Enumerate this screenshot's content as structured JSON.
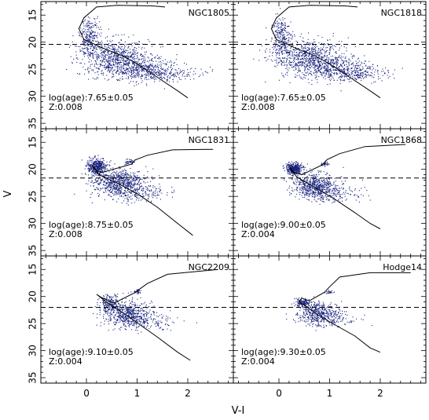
{
  "figure": {
    "xlabel": "V-I",
    "ylabel": "V"
  },
  "style": {
    "point_color": "#1a237e",
    "line_color": "#000000"
  },
  "chart_data": {
    "type": "scatter",
    "layout": "3x2 grid, shared axes",
    "xlabel": "V-I",
    "ylabel": "V",
    "xlim": [
      -0.9,
      2.9
    ],
    "ylim": [
      36,
      12.5
    ],
    "y_inverted": true,
    "x_ticks": [
      0,
      1,
      2
    ],
    "y_ticks": [
      15,
      20,
      25,
      30,
      35
    ],
    "panels": [
      {
        "name": "NGC1805",
        "log_age": "log(age):7.65±0.05",
        "z": "Z:0.008",
        "completeness_V": 20.4,
        "isochrone": [
          [
            1.55,
            13.5
          ],
          [
            1.3,
            13.3
          ],
          [
            0.6,
            13.2
          ],
          [
            0.2,
            13.5
          ],
          [
            -0.05,
            15.5
          ],
          [
            -0.15,
            17.5
          ],
          [
            -0.05,
            19.5
          ],
          [
            0.3,
            21.0
          ],
          [
            0.7,
            22.5
          ],
          [
            1.0,
            24.0
          ],
          [
            1.4,
            26.5
          ],
          [
            1.8,
            29.0
          ],
          [
            2.0,
            30.3
          ]
        ],
        "clumps": [
          {
            "cx": 0.05,
            "cy": 19.0,
            "sx": 0.1,
            "sy": 1.8,
            "n": 260
          },
          {
            "cx": 0.55,
            "cy": 22.5,
            "sx": 0.35,
            "sy": 1.5,
            "n": 650
          },
          {
            "cx": 1.05,
            "cy": 24.9,
            "sx": 0.4,
            "sy": 1.1,
            "n": 500
          },
          {
            "cx": 1.6,
            "cy": 25.8,
            "sx": 0.35,
            "sy": 0.6,
            "n": 140
          }
        ]
      },
      {
        "name": "NGC1818",
        "log_age": "log(age):7.65±0.05",
        "z": "Z:0.008",
        "completeness_V": 20.4,
        "isochrone": [
          [
            1.55,
            13.5
          ],
          [
            1.3,
            13.3
          ],
          [
            0.6,
            13.2
          ],
          [
            0.2,
            13.5
          ],
          [
            -0.05,
            15.5
          ],
          [
            -0.15,
            17.5
          ],
          [
            -0.05,
            19.5
          ],
          [
            0.3,
            21.0
          ],
          [
            0.7,
            22.5
          ],
          [
            1.0,
            24.0
          ],
          [
            1.4,
            26.5
          ],
          [
            1.8,
            29.0
          ],
          [
            2.0,
            30.3
          ]
        ],
        "clumps": [
          {
            "cx": 0.05,
            "cy": 19.0,
            "sx": 0.1,
            "sy": 1.8,
            "n": 260
          },
          {
            "cx": 0.55,
            "cy": 22.5,
            "sx": 0.35,
            "sy": 1.5,
            "n": 650
          },
          {
            "cx": 1.05,
            "cy": 24.9,
            "sx": 0.4,
            "sy": 1.1,
            "n": 500
          },
          {
            "cx": 1.6,
            "cy": 25.8,
            "sx": 0.35,
            "sy": 0.6,
            "n": 140
          }
        ]
      },
      {
        "name": "NGC1831",
        "log_age": "log(age):8.75±0.05",
        "z": "Z:0.008",
        "completeness_V": 21.6,
        "isochrone": [
          [
            2.5,
            16.3
          ],
          [
            1.7,
            16.4
          ],
          [
            1.2,
            17.4
          ],
          [
            0.95,
            18.3
          ],
          [
            0.9,
            19.0
          ],
          [
            0.3,
            20.6
          ],
          [
            0.15,
            20.0
          ],
          [
            0.12,
            19.3
          ],
          [
            0.25,
            21.0
          ],
          [
            0.6,
            22.5
          ],
          [
            1.0,
            24.5
          ],
          [
            1.4,
            27.0
          ],
          [
            1.8,
            30.0
          ],
          [
            2.1,
            32.2
          ]
        ],
        "clumps": [
          {
            "cx": 0.2,
            "cy": 19.4,
            "sx": 0.09,
            "sy": 0.8,
            "n": 420
          },
          {
            "cx": 0.6,
            "cy": 22.2,
            "sx": 0.25,
            "sy": 1.1,
            "n": 650
          },
          {
            "cx": 0.95,
            "cy": 24.3,
            "sx": 0.3,
            "sy": 0.9,
            "n": 250
          },
          {
            "cx": 0.85,
            "cy": 18.5,
            "sx": 0.05,
            "sy": 0.25,
            "n": 40
          }
        ]
      },
      {
        "name": "NGC1868",
        "log_age": "log(age):9.00±0.05",
        "z": "Z:0.004",
        "completeness_V": 21.6,
        "isochrone": [
          [
            2.5,
            15.4
          ],
          [
            1.7,
            15.8
          ],
          [
            1.2,
            17.1
          ],
          [
            0.95,
            18.2
          ],
          [
            0.85,
            19.2
          ],
          [
            0.45,
            21.0
          ],
          [
            0.25,
            20.4
          ],
          [
            0.22,
            19.6
          ],
          [
            0.35,
            21.4
          ],
          [
            0.7,
            23.3
          ],
          [
            1.1,
            25.5
          ],
          [
            1.5,
            28.0
          ],
          [
            1.8,
            30.0
          ],
          [
            2.0,
            31.0
          ]
        ],
        "clumps": [
          {
            "cx": 0.3,
            "cy": 19.8,
            "sx": 0.08,
            "sy": 0.5,
            "n": 420
          },
          {
            "cx": 0.7,
            "cy": 22.9,
            "sx": 0.22,
            "sy": 1.1,
            "n": 550
          },
          {
            "cx": 1.05,
            "cy": 24.5,
            "sx": 0.3,
            "sy": 0.8,
            "n": 180
          },
          {
            "cx": 0.9,
            "cy": 19.0,
            "sx": 0.04,
            "sy": 0.2,
            "n": 40
          }
        ]
      },
      {
        "name": "NGC2209",
        "log_age": "log(age):9.10±0.05",
        "z": "Z:0.004",
        "completeness_V": 22.0,
        "isochrone": [
          [
            2.6,
            15.0
          ],
          [
            1.6,
            15.9
          ],
          [
            1.2,
            17.6
          ],
          [
            0.95,
            19.3
          ],
          [
            0.55,
            21.2
          ],
          [
            0.3,
            20.2
          ],
          [
            0.2,
            19.6
          ],
          [
            0.45,
            21.4
          ],
          [
            0.8,
            23.5
          ],
          [
            1.1,
            25.5
          ],
          [
            1.4,
            27.5
          ],
          [
            1.8,
            30.3
          ],
          [
            2.05,
            31.8
          ]
        ],
        "clumps": [
          {
            "cx": 0.45,
            "cy": 21.2,
            "sx": 0.1,
            "sy": 0.8,
            "n": 180
          },
          {
            "cx": 0.8,
            "cy": 23.0,
            "sx": 0.25,
            "sy": 1.1,
            "n": 500
          },
          {
            "cx": 1.1,
            "cy": 24.5,
            "sx": 0.3,
            "sy": 0.8,
            "n": 180
          },
          {
            "cx": 1.0,
            "cy": 19.0,
            "sx": 0.05,
            "sy": 0.2,
            "n": 30
          }
        ]
      },
      {
        "name": "Hodge14",
        "log_age": "log(age):9.30±0.05",
        "z": "Z:0.004",
        "completeness_V": 22.0,
        "isochrone": [
          [
            2.6,
            15.6
          ],
          [
            1.8,
            15.6
          ],
          [
            1.2,
            16.4
          ],
          [
            1.0,
            18.2
          ],
          [
            0.9,
            19.2
          ],
          [
            0.6,
            20.8
          ],
          [
            0.45,
            20.3
          ],
          [
            0.4,
            20.9
          ],
          [
            0.75,
            23.3
          ],
          [
            1.1,
            25.2
          ],
          [
            1.5,
            27.3
          ],
          [
            1.8,
            29.5
          ],
          [
            2.0,
            30.3
          ]
        ],
        "clumps": [
          {
            "cx": 0.45,
            "cy": 21.0,
            "sx": 0.07,
            "sy": 0.4,
            "n": 130
          },
          {
            "cx": 0.75,
            "cy": 22.9,
            "sx": 0.2,
            "sy": 1.0,
            "n": 420
          },
          {
            "cx": 1.0,
            "cy": 24.3,
            "sx": 0.25,
            "sy": 0.8,
            "n": 140
          },
          {
            "cx": 0.98,
            "cy": 19.1,
            "sx": 0.04,
            "sy": 0.2,
            "n": 25
          }
        ]
      }
    ]
  }
}
